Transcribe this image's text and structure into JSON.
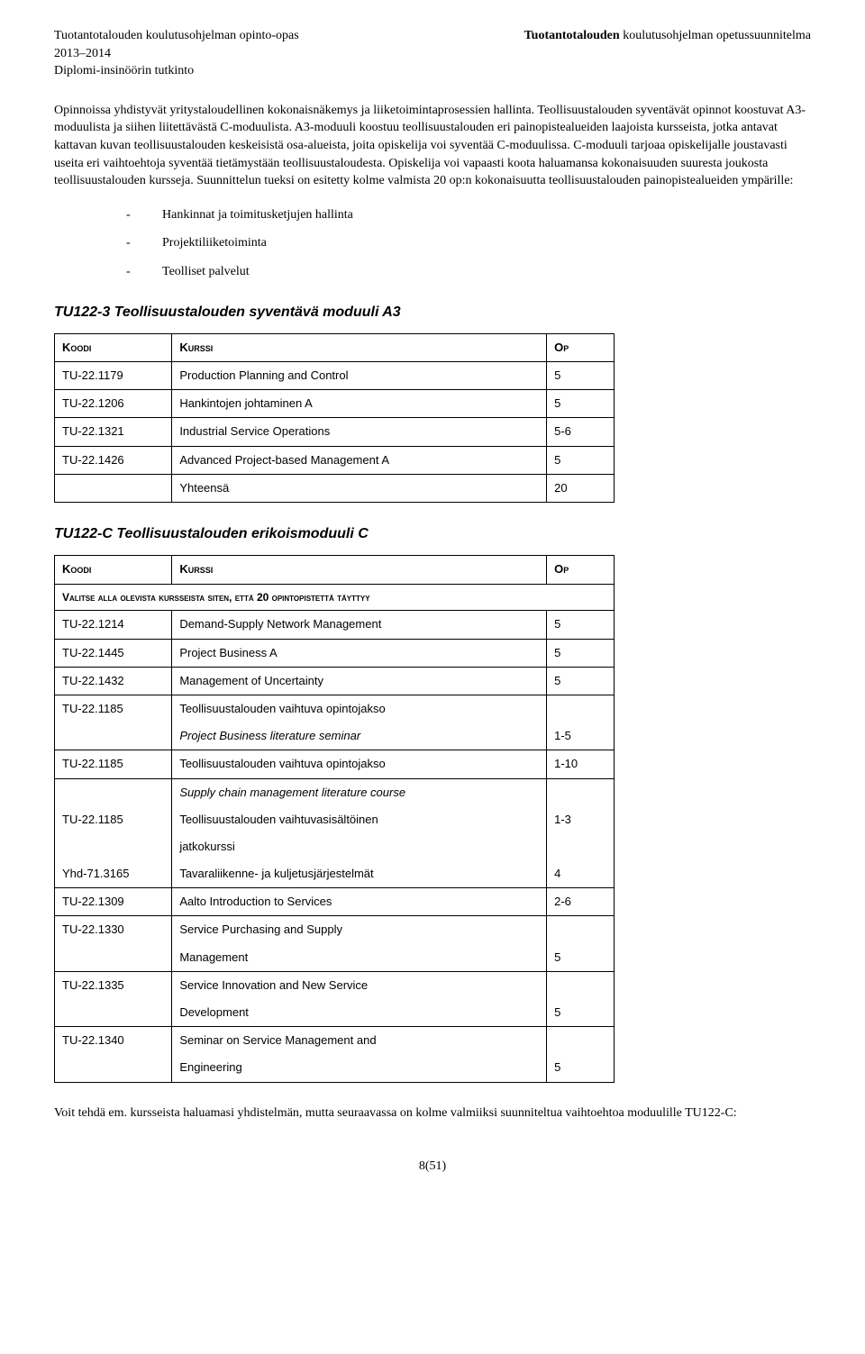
{
  "header": {
    "left_line1": "Tuotantotalouden koulutusohjelman opinto-opas",
    "left_line2": "2013–2014",
    "left_line3": "Diplomi-insinöörin tutkinto",
    "right_bold": "Tuotantotalouden",
    "right_normal": " koulutusohjelman opetussuunnitelma"
  },
  "para1": "Opinnoissa yhdistyvät yritystaloudellinen kokonaisnäkemys ja liiketoimintaprosessien hallinta. Teollisuustalouden syventävät opinnot koostuvat A3-moduulista ja siihen liitettävästä C-moduulista. A3-moduuli koostuu teollisuustalouden eri painopistealueiden laajoista kursseista, jotka antavat kattavan kuvan teollisuustalouden keskeisistä osa-alueista, joita opiskelija voi syventää C-moduulissa. C-moduuli tarjoaa opiskelijalle joustavasti useita eri vaihtoehtoja syventää tietämystään teollisuustaloudesta. Opiskelija voi vapaasti koota haluamansa kokonaisuuden suuresta joukosta teollisuustalouden kursseja. Suunnittelun tueksi on esitetty kolme valmista 20 op:n kokonaisuutta teollisuustalouden painopistealueiden ympärille:",
  "bullets": [
    "Hankinnat ja toimitusketjujen hallinta",
    "Projektiliiketoiminta",
    "Teolliset palvelut"
  ],
  "tableA3": {
    "title": "TU122-3 Teollisuustalouden syventävä moduuli A3",
    "h1": "Koodi",
    "h2": "Kurssi",
    "h3": "Op",
    "rows": [
      {
        "code": "TU-22.1179",
        "name": "Production Planning and Control",
        "op": "5"
      },
      {
        "code": "TU-22.1206",
        "name": "Hankintojen johtaminen A",
        "op": "5"
      },
      {
        "code": "TU-22.1321",
        "name": "Industrial Service Operations",
        "op": "5-6"
      },
      {
        "code": "TU-22.1426",
        "name": "Advanced Project-based Management A",
        "op": "5"
      }
    ],
    "total_label": "Yhteensä",
    "total_op": "20"
  },
  "tableC": {
    "title": "TU122-C Teollisuustalouden erikoismoduuli C",
    "h1": "Koodi",
    "h2": "Kurssi",
    "h3": "Op",
    "spanner": "Valitse alla olevista kursseista siten, että 20 opintopistettä täyttyy",
    "r1": {
      "code": "TU-22.1214",
      "name": "Demand-Supply Network Management",
      "op": "5"
    },
    "r2": {
      "code": "TU-22.1445",
      "name": "Project Business A",
      "op": "5"
    },
    "r3": {
      "code": "TU-22.1432",
      "name": "Management of Uncertainty",
      "op": "5"
    },
    "r4a_code": "TU-22.1185",
    "r4a_name": "Teollisuustalouden vaihtuva opintojakso",
    "r4a_op": "",
    "r4b_name": "Project Business literature seminar",
    "r4b_op": "1-5",
    "r5": {
      "code": "TU-22.1185",
      "name": "Teollisuustalouden vaihtuva opintojakso",
      "op": "1-10"
    },
    "r6a_name": "Supply chain management literature course",
    "r6b_code": "TU-22.1185",
    "r6b_name": "Teollisuustalouden vaihtuvasisältöinen",
    "r6b_op": "1-3",
    "r6c_name": "jatkokurssi",
    "r6d_code": "Yhd-71.3165",
    "r6d_name": "Tavaraliikenne- ja kuljetusjärjestelmät",
    "r6d_op": "4",
    "r7": {
      "code": "TU-22.1309",
      "name": "Aalto Introduction to Services",
      "op": "2-6"
    },
    "r8a_code": "TU-22.1330",
    "r8a_name": "Service Purchasing and Supply",
    "r8b_name": "Management",
    "r8b_op": "5",
    "r9a_code": "TU-22.1335",
    "r9a_name": "Service Innovation and New Service",
    "r9b_name": "Development",
    "r9b_op": "5",
    "r10a_code": "TU-22.1340",
    "r10a_name": "Seminar on Service Management and",
    "r10b_name": "Engineering",
    "r10b_op": "5"
  },
  "para2": "Voit tehdä em. kursseista haluamasi yhdistelmän, mutta seuraavassa on kolme valmiiksi suunniteltua vaihtoehtoa moduulille TU122-C:",
  "footer": "8(51)"
}
